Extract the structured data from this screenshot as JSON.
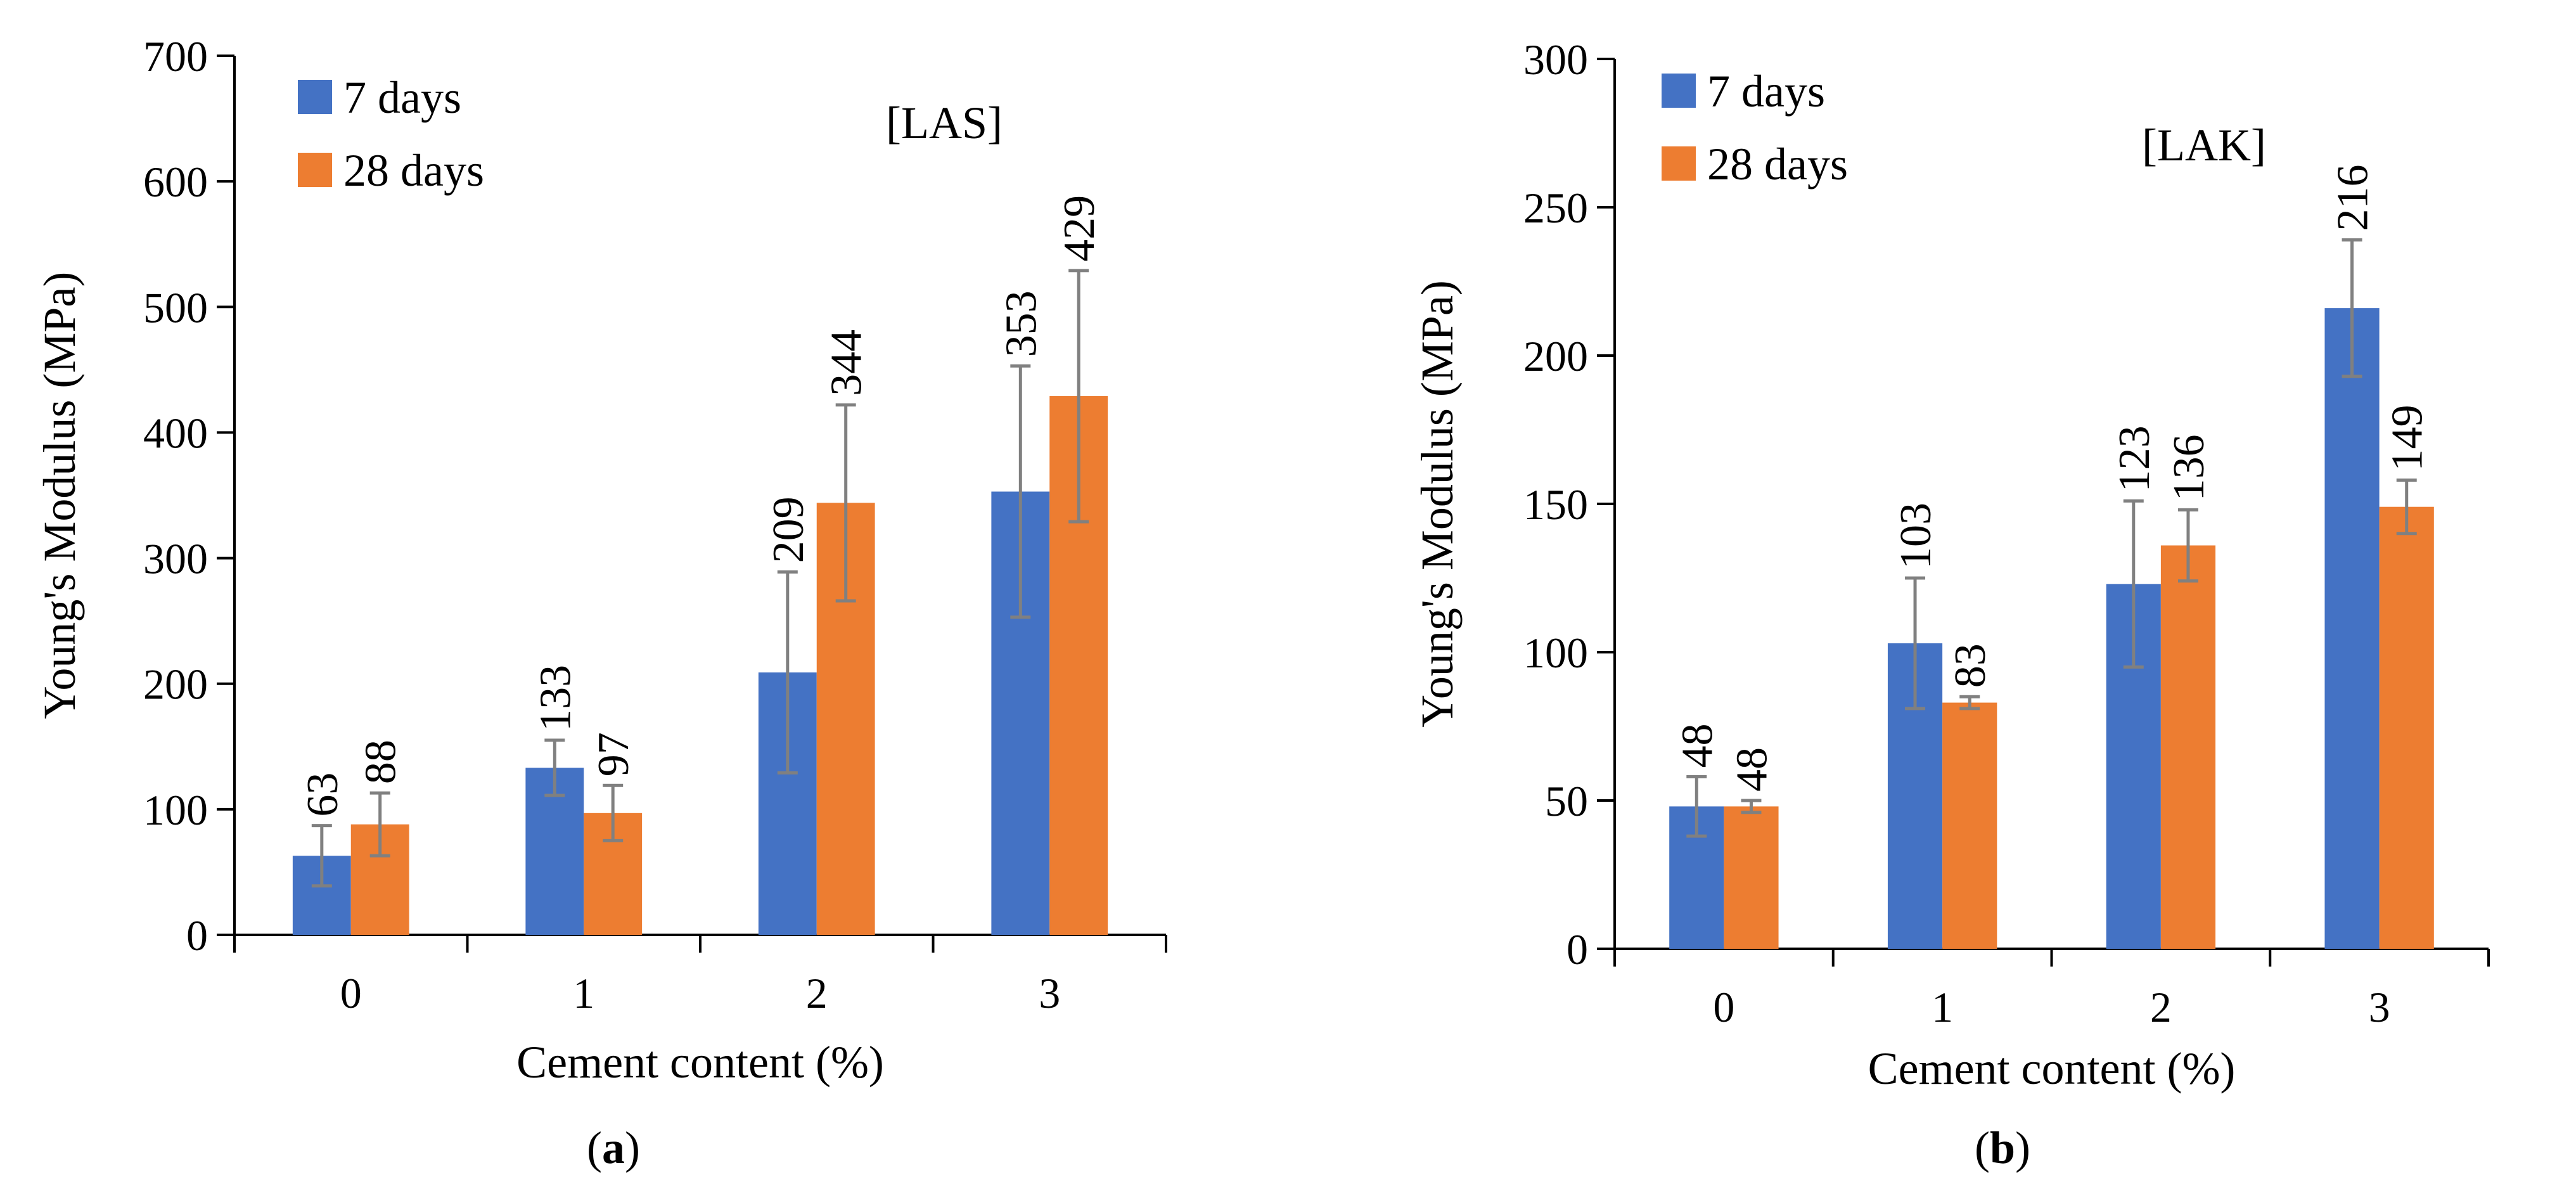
{
  "colors": {
    "series_7_days": "#4472C4",
    "series_28_days": "#ED7D31",
    "error_bar": "#808080",
    "axis": "#000000"
  },
  "chart_data": [
    {
      "type": "bar",
      "panel": "a",
      "caption": {
        "open": "(",
        "letter": "a",
        "close": ")"
      },
      "annotation": "[LAS]",
      "xlabel": "Cement content (%)",
      "ylabel": "Young's Modulus (MPa)",
      "ylim": [
        0,
        700
      ],
      "yticks": [
        0,
        100,
        200,
        300,
        400,
        500,
        600,
        700
      ],
      "categories": [
        "0",
        "1",
        "2",
        "3"
      ],
      "legend_position": "top-left",
      "series": [
        {
          "name": "7 days",
          "values": [
            63,
            133,
            209,
            353
          ],
          "error": [
            24,
            22,
            80,
            100
          ],
          "labels": [
            "63",
            "133",
            "209",
            "353"
          ]
        },
        {
          "name": "28 days",
          "values": [
            88,
            97,
            344,
            429
          ],
          "error": [
            25,
            22,
            78,
            100
          ],
          "labels": [
            "88",
            "97",
            "344",
            "429"
          ]
        }
      ]
    },
    {
      "type": "bar",
      "panel": "b",
      "caption": {
        "open": "(",
        "letter": "b",
        "close": ")"
      },
      "annotation": "[LAK]",
      "xlabel": "Cement content (%)",
      "ylabel": "Young's Modulus (MPa)",
      "ylim": [
        0,
        300
      ],
      "yticks": [
        0,
        50,
        100,
        150,
        200,
        250,
        300
      ],
      "categories": [
        "0",
        "1",
        "2",
        "3"
      ],
      "legend_position": "top-left",
      "series": [
        {
          "name": "7 days",
          "values": [
            48,
            103,
            123,
            216
          ],
          "error": [
            10,
            22,
            28,
            23
          ],
          "labels": [
            "48",
            "103",
            "123",
            "216"
          ]
        },
        {
          "name": "28 days",
          "values": [
            48,
            83,
            136,
            149
          ],
          "error": [
            2,
            2,
            12,
            9
          ],
          "labels": [
            "48",
            "83",
            "136",
            "149"
          ]
        }
      ]
    }
  ]
}
